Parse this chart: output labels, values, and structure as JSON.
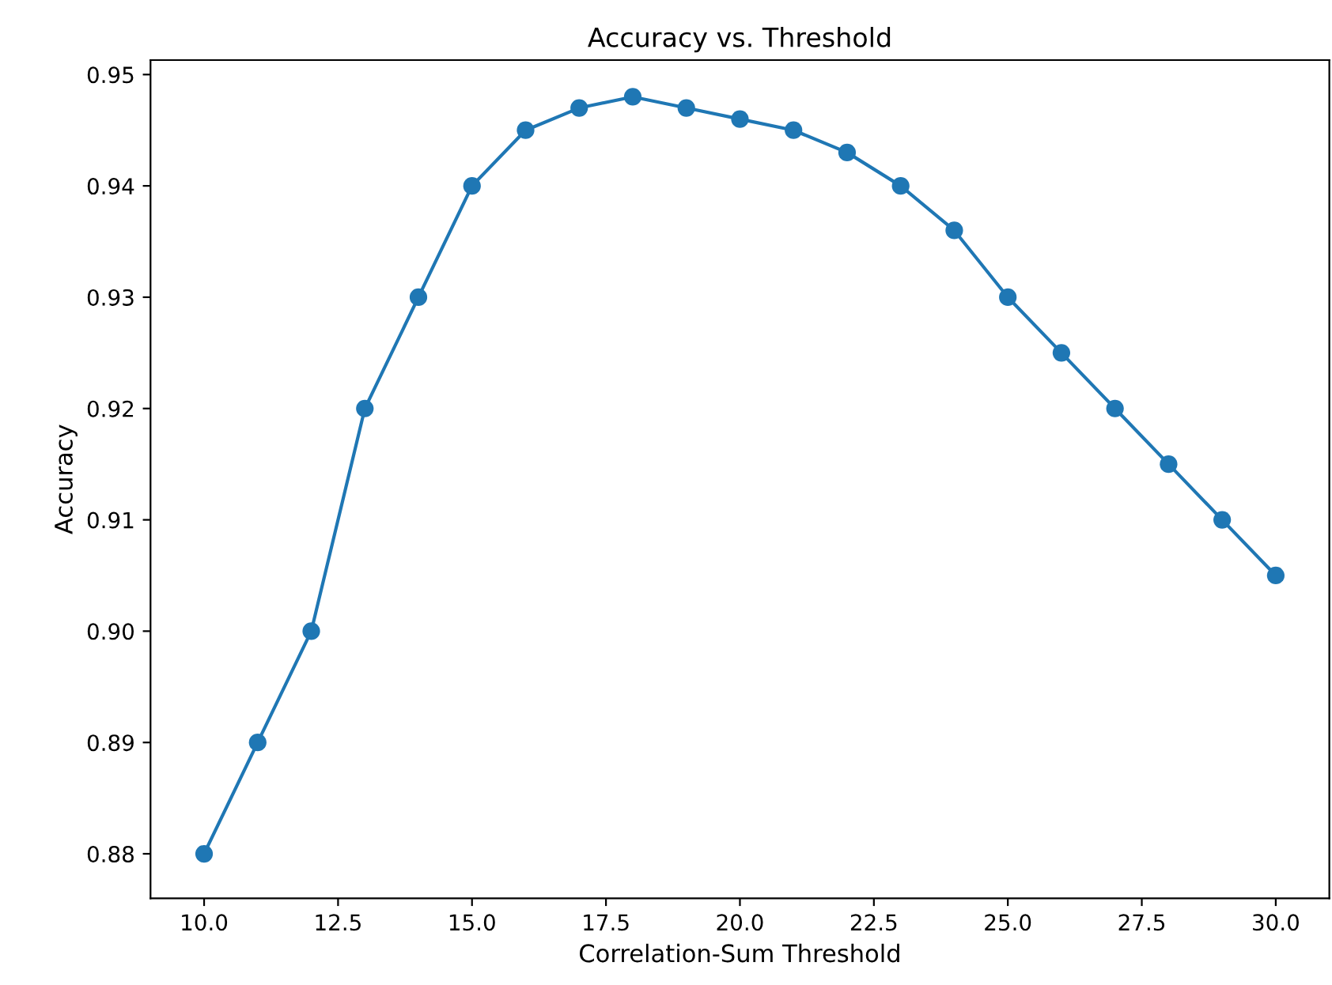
{
  "chart_data": {
    "type": "line",
    "title": "Accuracy vs. Threshold",
    "xlabel": "Correlation-Sum Threshold",
    "ylabel": "Accuracy",
    "x": [
      10,
      11,
      12,
      13,
      14,
      15,
      16,
      17,
      18,
      19,
      20,
      21,
      22,
      23,
      24,
      25,
      26,
      27,
      28,
      29,
      30
    ],
    "series": [
      {
        "color": "#1f77b4",
        "values": [
          0.88,
          0.89,
          0.9,
          0.92,
          0.93,
          0.94,
          0.945,
          0.947,
          0.948,
          0.947,
          0.946,
          0.945,
          0.943,
          0.94,
          0.936,
          0.93,
          0.925,
          0.92,
          0.915,
          0.91,
          0.905
        ]
      }
    ],
    "xlim": [
      9,
      31
    ],
    "ylim": [
      0.876,
      0.9513
    ],
    "xticks": [
      {
        "value": 10,
        "label": "10.0"
      },
      {
        "value": 12.5,
        "label": "12.5"
      },
      {
        "value": 15,
        "label": "15.0"
      },
      {
        "value": 17.5,
        "label": "17.5"
      },
      {
        "value": 20,
        "label": "20.0"
      },
      {
        "value": 22.5,
        "label": "22.5"
      },
      {
        "value": 25,
        "label": "25.0"
      },
      {
        "value": 27.5,
        "label": "27.5"
      },
      {
        "value": 30,
        "label": "30.0"
      }
    ],
    "yticks": [
      {
        "value": 0.88,
        "label": "0.88"
      },
      {
        "value": 0.89,
        "label": "0.89"
      },
      {
        "value": 0.9,
        "label": "0.90"
      },
      {
        "value": 0.91,
        "label": "0.91"
      },
      {
        "value": 0.92,
        "label": "0.92"
      },
      {
        "value": 0.93,
        "label": "0.93"
      },
      {
        "value": 0.94,
        "label": "0.94"
      },
      {
        "value": 0.95,
        "label": "0.95"
      }
    ],
    "marker": "circle",
    "line_style": "solid",
    "grid": false
  }
}
